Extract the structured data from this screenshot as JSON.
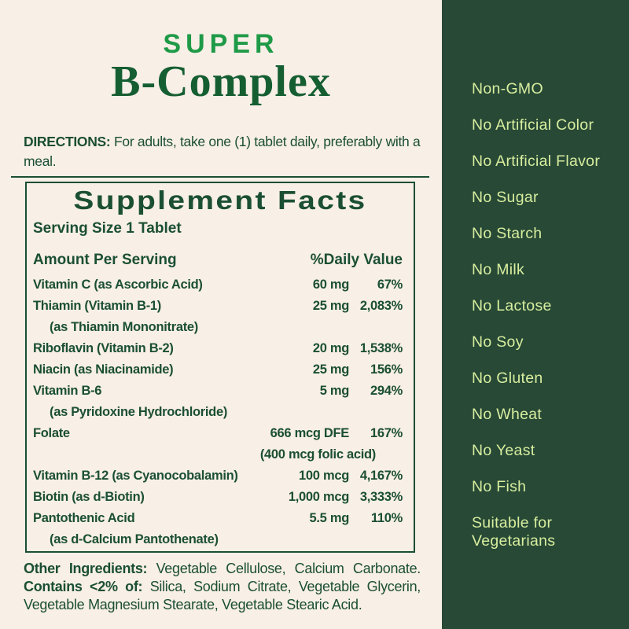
{
  "title": {
    "super": "SUPER",
    "main": "B-Complex"
  },
  "directions": {
    "label": "DIRECTIONS:",
    "text": "For adults, take one (1) tablet daily, preferably with a meal."
  },
  "supplement_facts": {
    "title": "Supplement Facts",
    "serving_size": "Serving Size 1 Tablet",
    "col_amount": "Amount Per Serving",
    "col_dv": "%Daily Value",
    "rows": [
      {
        "name": "Vitamin C (as Ascorbic Acid)",
        "amount": "60 mg",
        "dv": "67%"
      },
      {
        "name": "Thiamin (Vitamin B-1)",
        "sub": "(as Thiamin Mononitrate)",
        "amount": "25 mg",
        "dv": "2,083%"
      },
      {
        "name": "Riboflavin (Vitamin B-2)",
        "amount": "20 mg",
        "dv": "1,538%"
      },
      {
        "name": "Niacin (as Niacinamide)",
        "amount": "25 mg",
        "dv": "156%"
      },
      {
        "name": "Vitamin B-6",
        "sub": "(as Pyridoxine Hydrochloride)",
        "amount": "5 mg",
        "dv": "294%"
      },
      {
        "name": "Folate",
        "amount": "666 mcg DFE",
        "amount_sub": "(400 mcg folic acid)",
        "dv": "167%"
      },
      {
        "name": "Vitamin B-12 (as Cyanocobalamin)",
        "amount": "100 mcg",
        "dv": "4,167%"
      },
      {
        "name": "Biotin (as d-Biotin)",
        "amount": "1,000 mcg",
        "dv": "3,333%"
      },
      {
        "name": "Pantothenic Acid",
        "sub": "(as d-Calcium Pantothenate)",
        "amount": "5.5 mg",
        "dv": "110%"
      }
    ]
  },
  "other_ingredients": {
    "label1": "Other Ingredients:",
    "text1": "Vegetable Cellulose, Calcium Carbonate.",
    "label2": "Contains <2% of:",
    "text2": "Silica, Sodium Citrate, Vegetable Glycerin, Vegetable Magnesium Stearate, Vegetable Stearic Acid."
  },
  "claims": [
    "Non-GMO",
    "No Artificial Color",
    "No Artificial Flavor",
    "No Sugar",
    "No Starch",
    "No Milk",
    "No Lactose",
    "No Soy",
    "No Gluten",
    "No Wheat",
    "No Yeast",
    "No Fish",
    "Suitable for Vegetarians"
  ],
  "colors": {
    "cream": "#f8efe7",
    "ink": "#1b4f33",
    "serif_green": "#155e32",
    "accent": "#1f9a47",
    "sidebar_bg": "#274936",
    "sidebar_text": "#d8ed9e"
  }
}
